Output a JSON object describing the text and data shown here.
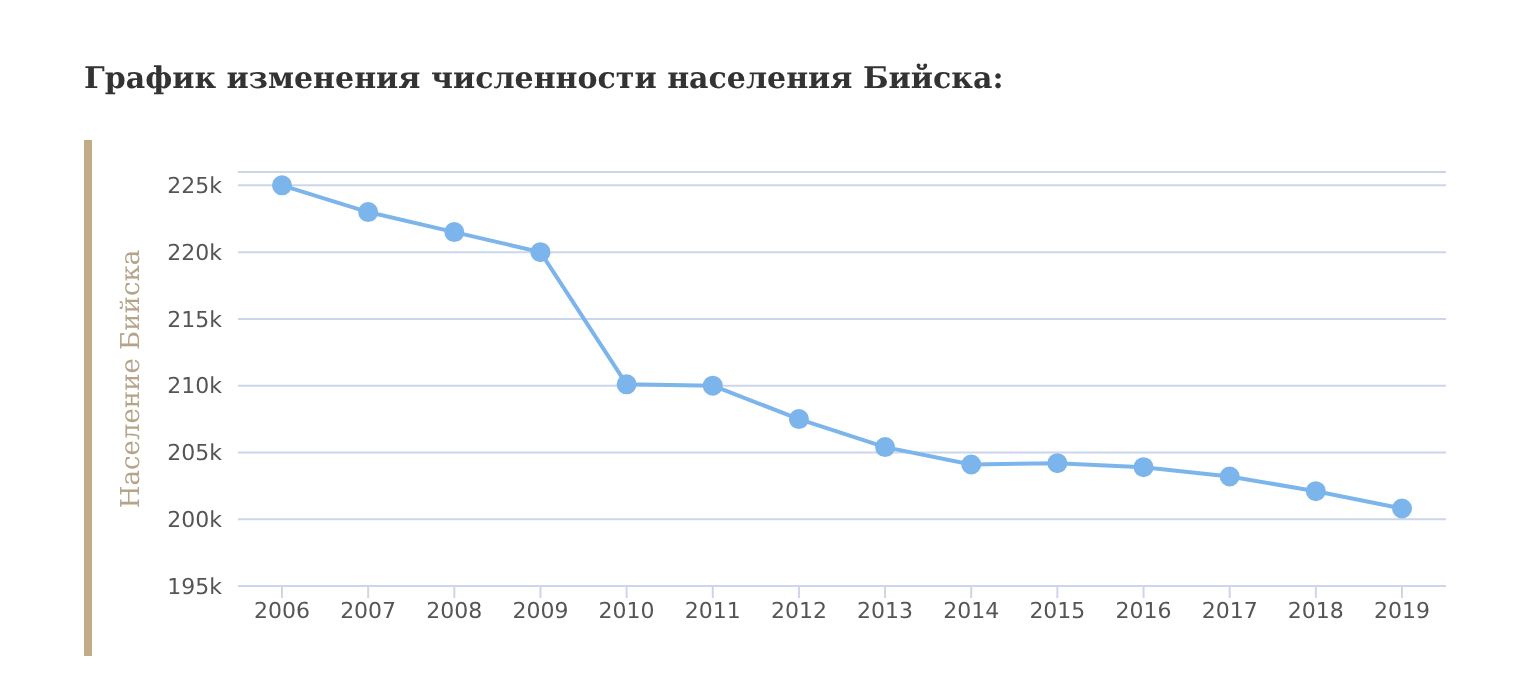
{
  "chart_data": {
    "type": "line",
    "title": "График изменения численности населения Бийска:",
    "ylabel": "Население Бийска",
    "categories": [
      "2006",
      "2007",
      "2008",
      "2009",
      "2010",
      "2011",
      "2012",
      "2013",
      "2014",
      "2015",
      "2016",
      "2017",
      "2018",
      "2019"
    ],
    "series": [
      {
        "color": "#7cb5ec",
        "values": [
          225000,
          223000,
          221500,
          220000,
          210100,
          210000,
          207500,
          205400,
          204100,
          204200,
          203900,
          203200,
          202100,
          200800
        ]
      }
    ],
    "ylim": [
      195000,
      226000
    ],
    "yticks": [
      {
        "value": 195000,
        "label": "195k"
      },
      {
        "value": 200000,
        "label": "200k"
      },
      {
        "value": 205000,
        "label": "205k"
      },
      {
        "value": 210000,
        "label": "210k"
      },
      {
        "value": 215000,
        "label": "215k"
      },
      {
        "value": 220000,
        "label": "220k"
      },
      {
        "value": 225000,
        "label": "225k"
      }
    ],
    "grid": "y",
    "marker": "circle",
    "line_style": "solid"
  }
}
